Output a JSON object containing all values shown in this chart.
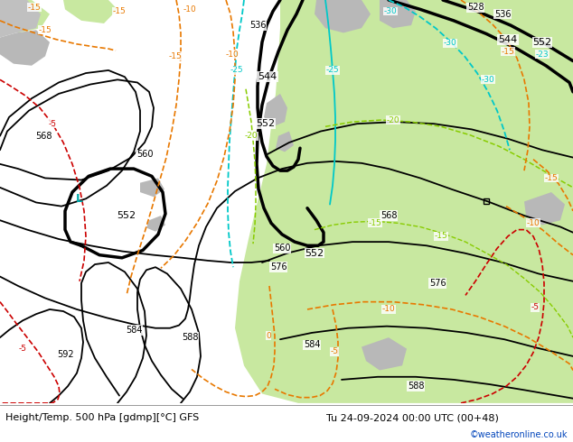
{
  "title_left": "Height/Temp. 500 hPa [gdmp][°C] GFS",
  "title_right": "Tu 24-09-2024 00:00 UTC (00+48)",
  "credit": "©weatheronline.co.uk",
  "bg_color": "#d8d8d8",
  "land_green": "#c8e8a0",
  "land_gray": "#b8b8b8",
  "footer_bg": "#ffffff",
  "height_color": "#000000",
  "orange": "#e87800",
  "red": "#cc0000",
  "green_t": "#88cc00",
  "cyan": "#00c8c8",
  "lw_thin": 1.3,
  "lw_thick": 2.5,
  "lw_temp": 1.2,
  "hs": 7,
  "ts": 6.5,
  "footer_fs": 8,
  "credit_fs": 7,
  "credit_color": "#0044bb"
}
